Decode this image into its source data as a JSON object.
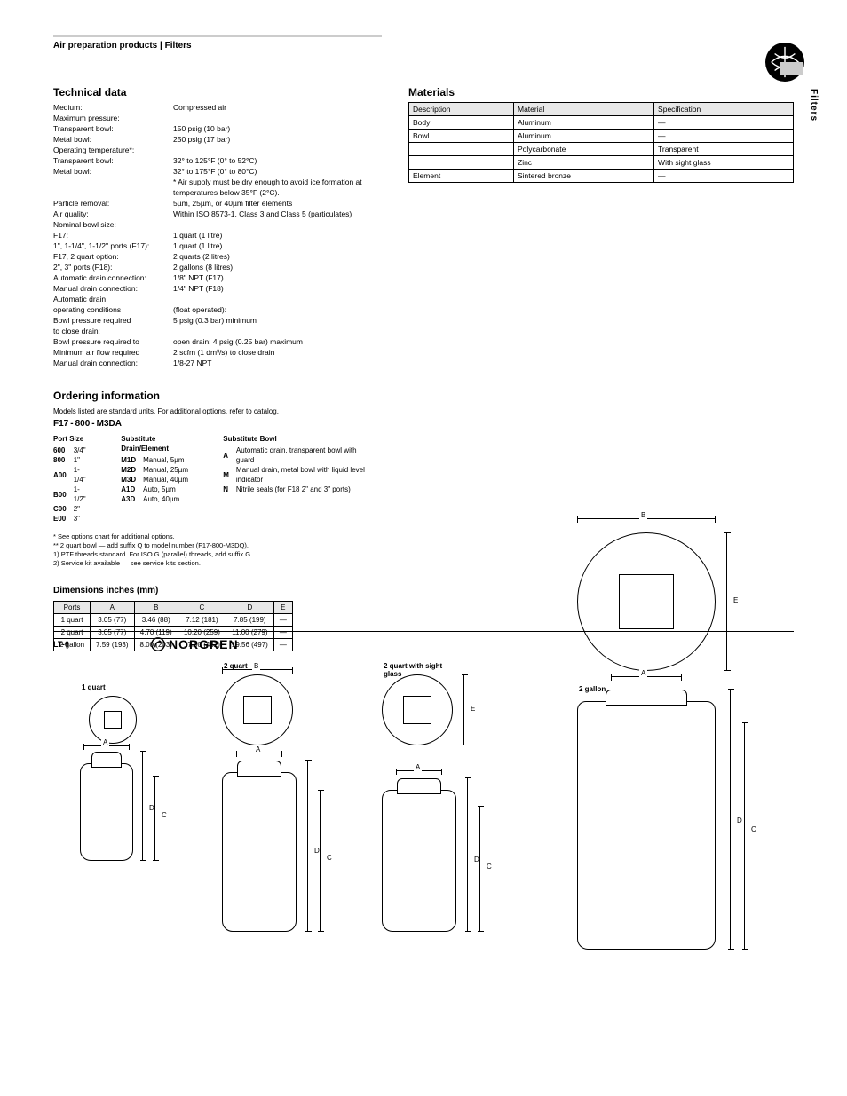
{
  "header": {
    "breadcrumb": "Air preparation products | Filters"
  },
  "sidebar": {
    "vertical_label": "Filters"
  },
  "technical": {
    "title": "Technical data",
    "rows": [
      {
        "label": "Medium:",
        "value": "Compressed air"
      },
      {
        "label": "Maximum pressure:",
        "value": ""
      },
      {
        "label": "  Transparent bowl:",
        "value": "150 psig (10 bar)"
      },
      {
        "label": "  Metal bowl:",
        "value": "250 psig (17 bar)"
      },
      {
        "label": "Operating temperature*:",
        "value": ""
      },
      {
        "label": "  Transparent bowl:",
        "value": "32° to 125°F (0° to 52°C)"
      },
      {
        "label": "  Metal bowl:",
        "value": "32° to 175°F (0° to 80°C)"
      },
      {
        "label": "",
        "value": "* Air supply must be dry enough to avoid ice formation at temperatures below 35°F (2°C)."
      },
      {
        "label": "Particle removal:",
        "value": "5µm, 25µm, or 40µm filter elements"
      },
      {
        "label": "Air quality:",
        "value": "Within ISO 8573-1, Class 3 and Class 5 (particulates)"
      },
      {
        "label": "Nominal bowl size:",
        "value": ""
      },
      {
        "label": "  F17:",
        "value": "1 quart (1 litre)"
      },
      {
        "label": "  1\", 1-1/4\", 1-1/2\" ports (F17):",
        "value": "1 quart (1 litre)"
      },
      {
        "label": "  F17, 2 quart option:",
        "value": "2 quarts (2 litres)"
      },
      {
        "label": "  2\", 3\" ports (F18):",
        "value": "2 gallons (8 litres)"
      },
      {
        "label": "Automatic drain connection:",
        "value": "1/8\" NPT (F17)"
      },
      {
        "label": "Manual drain connection:",
        "value": "1/4\" NPT (F18)"
      },
      {
        "label": "Automatic drain",
        "value": ""
      },
      {
        "label": "  operating conditions",
        "value": "(float operated):"
      },
      {
        "label": "  Bowl pressure required",
        "value": "5 psig (0.3 bar) minimum"
      },
      {
        "label": "  to close drain:",
        "value": ""
      },
      {
        "label": "  Bowl pressure required to",
        "value": "open drain: 4 psig (0.25 bar) maximum"
      },
      {
        "label": "  Minimum air flow required",
        "value": "2 scfm (1 dm³/s) to close drain"
      },
      {
        "label": "Manual drain connection:",
        "value": "1/8-27 NPT"
      }
    ]
  },
  "materials": {
    "title": "Materials",
    "columns": [
      "Description",
      "Material",
      "Specification"
    ],
    "rows": [
      [
        "Body",
        "Aluminum",
        "—"
      ],
      [
        "Bowl",
        "Aluminum",
        "—"
      ],
      [
        "",
        "Polycarbonate",
        "Transparent"
      ],
      [
        "",
        "Zinc",
        "With sight glass"
      ],
      [
        "Element",
        "Sintered bronze",
        "—"
      ]
    ]
  },
  "ordering": {
    "title": "Ordering information",
    "subtitle": "Models listed are standard units. For additional options, refer to catalog.",
    "segments": [
      "F17",
      "-",
      "800",
      "-",
      "M3D",
      "A"
    ],
    "port_size": {
      "title": "Port Size",
      "rows": [
        [
          "600",
          "3/4\""
        ],
        [
          "800",
          "1\""
        ],
        [
          "A00",
          "1-1/4\""
        ],
        [
          "B00",
          "1-1/2\""
        ],
        [
          "C00",
          "2\""
        ],
        [
          "E00",
          "3\""
        ]
      ]
    },
    "bowl": {
      "title": "Substitute  Bowl",
      "rows": [
        [
          "A",
          "Automatic drain, transparent bowl with guard"
        ],
        [
          "M",
          "Manual drain, metal bowl with liquid level indicator"
        ],
        [
          "N",
          "Nitrile seals (for F18 2\" and 3\" ports)"
        ]
      ]
    },
    "drain": {
      "title": "Substitute  Drain/Element",
      "rows": [
        [
          "M1D",
          "Manual, 5µm"
        ],
        [
          "M2D",
          "Manual, 25µm"
        ],
        [
          "M3D",
          "Manual, 40µm"
        ],
        [
          "A1D",
          "Auto, 5µm"
        ],
        [
          "A3D",
          "Auto, 40µm"
        ]
      ]
    },
    "notes": [
      "* See options chart for additional options.",
      "** 2 quart bowl — add suffix Q to model number (F17-800-M3DQ).",
      "1) PTF threads standard. For ISO G (parallel) threads, add suffix G.",
      "2) Service kit available — see service kits section."
    ]
  },
  "dimensions": {
    "title": "Dimensions  inches (mm)",
    "columns": [
      "Ports",
      "A",
      "B",
      "C",
      "D",
      "E"
    ],
    "rows": [
      [
        "1 quart",
        "3.05 (77)",
        "3.46 (88)",
        "7.12 (181)",
        "7.85 (199)",
        "—"
      ],
      [
        "2 quart",
        "3.05 (77)",
        "4.70 (119)",
        "10.20 (259)",
        "11.00 (279)",
        "—"
      ],
      [
        "2 gallon",
        "7.59 (193)",
        "8.00 (203)",
        "17.00 (432)",
        "19.56 (497)",
        "—"
      ]
    ],
    "labels": {
      "q1": "1 quart",
      "q2": "2 quart",
      "q2_sight": "2 quart with sight glass",
      "g2": "2 gallon",
      "A": "A",
      "B": "B",
      "C": "C",
      "D": "D",
      "E": "E"
    }
  },
  "footer": {
    "page": "LT-6",
    "brand": "NORGREN"
  }
}
